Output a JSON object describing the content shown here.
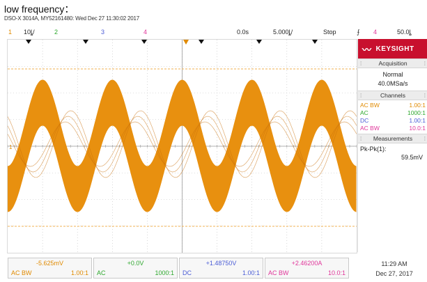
{
  "caption": "low frequency：",
  "header_line": "DSO-X 3014A, MY52161480: Wed Dec 27 11:30:02 2017",
  "status": {
    "ch1_num": "1",
    "ch1_scale": "10ȴ/",
    "ch2_num": "2",
    "ch3_num": "3",
    "ch4_num": "4",
    "time_delay": "0.0s",
    "time_scale": "5.000ȴ/",
    "run_state": "Stop",
    "trigger_symbol": "⨍",
    "trigger_ch": "4",
    "trigger_level": "50.0ȴ"
  },
  "brand": "KEYSIGHT",
  "panel": {
    "acquisition_title": "Acquisition",
    "acquisition_mode": "Normal",
    "acquisition_rate": "40.0MSa/s",
    "channels_title": "Channels",
    "channels": [
      {
        "coupling": "AC BW",
        "ratio": "1.00:1",
        "color": "#e08a00"
      },
      {
        "coupling": "AC",
        "ratio": "1000:1",
        "color": "#2ea82e"
      },
      {
        "coupling": "DC",
        "ratio": "1.00:1",
        "color": "#4a5cd6"
      },
      {
        "coupling": "AC BW",
        "ratio": "10.0:1",
        "color": "#e0359a"
      }
    ],
    "measurements_title": "Measurements",
    "meas_label": "Pk-Pk(1):",
    "meas_value": "59.5mV"
  },
  "bottom": [
    {
      "value": "-5.625mV",
      "coupling": "AC  BW",
      "ratio": "1.00:1",
      "color": "#e08a00"
    },
    {
      "value": "+0.0V",
      "coupling": "AC",
      "ratio": "1000:1",
      "color": "#2ea82e"
    },
    {
      "value": "+1.48750V",
      "coupling": "DC",
      "ratio": "1.00:1",
      "color": "#4a5cd6"
    },
    {
      "value": "+2.46200A",
      "coupling": "AC  BW",
      "ratio": "10.0:1",
      "color": "#e0359a"
    }
  ],
  "clock": {
    "time": "11:29 AM",
    "date": "Dec 27, 2017"
  },
  "colors": {
    "trace": "#e8900f",
    "grid": "#bdbdbd",
    "cursor": "#f0b050"
  }
}
